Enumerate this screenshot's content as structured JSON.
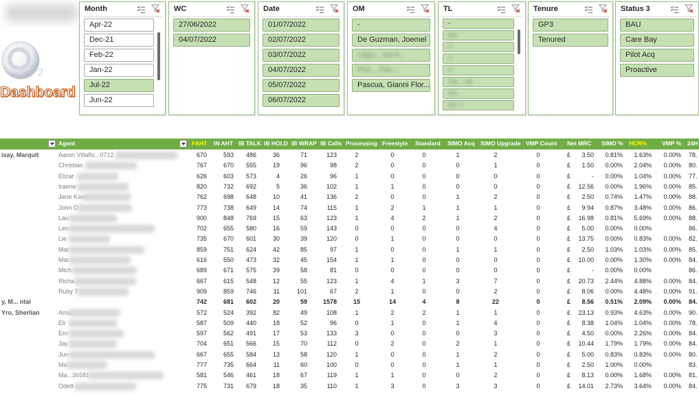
{
  "dashboard": {
    "title": "Dashboard",
    "logo_text": "2"
  },
  "slicers": [
    {
      "title": "Month",
      "items": [
        {
          "label": "Apr-22",
          "selected": false
        },
        {
          "label": "Dec-21",
          "selected": false
        },
        {
          "label": "Feb-22",
          "selected": false
        },
        {
          "label": "Jan-22",
          "selected": false
        },
        {
          "label": "Jul-22",
          "selected": true
        },
        {
          "label": "Jun-22",
          "selected": false
        }
      ]
    },
    {
      "title": "WC",
      "items": [
        {
          "label": "27/06/2022",
          "selected": true
        },
        {
          "label": "04/07/2022",
          "selected": true
        }
      ]
    },
    {
      "title": "Date",
      "items": [
        {
          "label": "01/07/2022",
          "selected": true
        },
        {
          "label": "02/07/2022",
          "selected": true
        },
        {
          "label": "03/07/2022",
          "selected": true
        },
        {
          "label": "04/07/2022",
          "selected": true
        },
        {
          "label": "05/07/2022",
          "selected": true
        },
        {
          "label": "06/07/2022",
          "selected": true
        }
      ]
    },
    {
      "title": "OM",
      "items": [
        {
          "label": "-",
          "selected": true
        },
        {
          "label": "De Guzman, Joemel",
          "selected": true
        },
        {
          "label": "Lagu... ael A...",
          "selected": true
        },
        {
          "label": "Pas... Flor...",
          "selected": true
        },
        {
          "label": "Pascua, Gianni Flor...",
          "selected": true
        }
      ]
    },
    {
      "title": "TL",
      "items": [
        {
          "label": "-",
          "selected": true
        },
        {
          "label": "Ba",
          "selected": true
        },
        {
          "label": "C",
          "selected": true
        },
        {
          "label": "C",
          "selected": true
        },
        {
          "label": "C",
          "selected": true
        },
        {
          "label": "Da... ult",
          "selected": true
        },
        {
          "label": "De",
          "selected": true
        },
        {
          "label": "De Y",
          "selected": true
        }
      ]
    },
    {
      "title": "Tenure",
      "items": [
        {
          "label": "GP3",
          "selected": true
        },
        {
          "label": "Tenured",
          "selected": true
        }
      ]
    },
    {
      "title": "Status 3",
      "items": [
        {
          "label": "BAU",
          "selected": true
        },
        {
          "label": "Care Bay",
          "selected": true
        },
        {
          "label": "Pilot Acq",
          "selected": true
        },
        {
          "label": "Proactive",
          "selected": true
        }
      ]
    }
  ],
  "table": {
    "columns": [
      "Agent",
      "FAHT",
      "IN AHT",
      "IB TALK",
      "IB HOLD",
      "IB WRAP",
      "IB Calls",
      "Processing",
      "Freestyle",
      "Standard",
      "SIMO Acq",
      "SIMO Upgrade",
      "VMP Count",
      "Net MRC",
      "SIMO %",
      "HCR%",
      "VMP %",
      "24H"
    ],
    "groups": [
      {
        "label": "isay, Marquit",
        "total_label": "",
        "rows": [
          {
            "agent": "Aaron Villaflo...0712",
            "v": [
              "670",
              "593",
              "486",
              "36",
              "71",
              "123",
              "2",
              "0",
              "0",
              "1",
              "2",
              "0",
              "£",
              "3.50",
              "0.81%",
              "1.63%",
              "0.00%",
              "78."
            ]
          },
          {
            "agent": "Christian",
            "v": [
              "767",
              "670",
              "555",
              "19",
              "96",
              "98",
              "2",
              "0",
              "0",
              "0",
              "1",
              "0",
              "£",
              "1.50",
              "0.00%",
              "2.04%",
              "0.00%",
              "80."
            ]
          },
          {
            "agent": "Elizar",
            "v": [
              "626",
              "603",
              "573",
              "4",
              "26",
              "96",
              "1",
              "0",
              "0",
              "0",
              "0",
              "0",
              "£",
              "-",
              "0.00%",
              "1.04%",
              "0.00%",
              "77."
            ]
          },
          {
            "agent": "Iraene",
            "v": [
              "820",
              "732",
              "692",
              "5",
              "36",
              "102",
              "1",
              "1",
              "0",
              "0",
              "0",
              "0",
              "£",
              "12.56",
              "0.00%",
              "1.96%",
              "0.00%",
              "85."
            ]
          },
          {
            "agent": "Jane Kaw",
            "v": [
              "762",
              "698",
              "648",
              "10",
              "41",
              "136",
              "2",
              "0",
              "0",
              "1",
              "2",
              "0",
              "£",
              "2.50",
              "0.74%",
              "1.47%",
              "0.00%",
              "88."
            ]
          },
          {
            "agent": "John D",
            "v": [
              "773",
              "738",
              "649",
              "14",
              "74",
              "115",
              "1",
              "2",
              "1",
              "1",
              "1",
              "0",
              "£",
              "9.94",
              "0.87%",
              "3.48%",
              "0.00%",
              "86."
            ]
          },
          {
            "agent": "Lau",
            "v": [
              "900",
              "848",
              "769",
              "15",
              "63",
              "123",
              "1",
              "4",
              "2",
              "1",
              "2",
              "0",
              "£",
              "16.98",
              "0.81%",
              "5.69%",
              "0.00%",
              "88."
            ]
          },
          {
            "agent": "Leo",
            "v": [
              "702",
              "655",
              "580",
              "16",
              "59",
              "143",
              "0",
              "0",
              "0",
              "0",
              "4",
              "0",
              "£",
              "5.00",
              "0.00%",
              "0.00%",
              "",
              "86."
            ]
          },
          {
            "agent": "Lie",
            "v": [
              "735",
              "670",
              "601",
              "30",
              "39",
              "120",
              "0",
              "1",
              "0",
              "0",
              "0",
              "0",
              "£",
              "13.75",
              "0.00%",
              "0.83%",
              "0.00%",
              "82."
            ]
          },
          {
            "agent": "Mar",
            "v": [
              "859",
              "751",
              "624",
              "42",
              "85",
              "97",
              "1",
              "0",
              "0",
              "1",
              "1",
              "0",
              "£",
              "2.50",
              "1.03%",
              "1.03%",
              "0.00%",
              "85."
            ]
          },
          {
            "agent": "Mar",
            "v": [
              "616",
              "550",
              "473",
              "32",
              "45",
              "154",
              "1",
              "1",
              "0",
              "0",
              "0",
              "0",
              "£",
              "10.00",
              "0.00%",
              "1.30%",
              "0.00%",
              "84."
            ]
          },
          {
            "agent": "Mich",
            "v": [
              "689",
              "671",
              "575",
              "39",
              "58",
              "81",
              "0",
              "0",
              "0",
              "0",
              "0",
              "0",
              "£",
              "-",
              "0.00%",
              "0.00%",
              "",
              "86."
            ]
          },
          {
            "agent": "Richa",
            "v": [
              "667",
              "615",
              "548",
              "12",
              "55",
              "123",
              "1",
              "4",
              "1",
              "3",
              "7",
              "0",
              "£",
              "20.73",
              "2.44%",
              "4.88%",
              "0.00%",
              "84."
            ]
          },
          {
            "agent": "Ruby T",
            "v": [
              "909",
              "859",
              "746",
              "11",
              "101",
              "67",
              "2",
              "1",
              "0",
              "0",
              "2",
              "0",
              "£",
              "8.06",
              "0.00%",
              "4.48%",
              "0.00%",
              "91."
            ]
          },
          {
            "agent": "",
            "total": true,
            "v": [
              "742",
              "681",
              "602",
              "20",
              "59",
              "1578",
              "15",
              "14",
              "4",
              "8",
              "22",
              "0",
              "£",
              "8.56",
              "0.51%",
              "2.09%",
              "0.00%",
              "84."
            ]
          }
        ]
      },
      {
        "label": "Yro, Sherlian",
        "rows": [
          {
            "agent": "Amo",
            "v": [
              "572",
              "524",
              "392",
              "82",
              "49",
              "108",
              "1",
              "2",
              "2",
              "1",
              "1",
              "0",
              "£",
              "23.13",
              "0.93%",
              "4.63%",
              "0.00%",
              "90."
            ]
          },
          {
            "agent": "Eli",
            "v": [
              "587",
              "509",
              "440",
              "18",
              "52",
              "96",
              "0",
              "1",
              "0",
              "1",
              "4",
              "0",
              "£",
              "8.38",
              "1.04%",
              "1.04%",
              "0.00%",
              "78."
            ]
          },
          {
            "agent": "Ern",
            "v": [
              "597",
              "562",
              "491",
              "17",
              "53",
              "133",
              "3",
              "0",
              "0",
              "0",
              "3",
              "0",
              "£",
              "4.50",
              "0.00%",
              "2.26%",
              "0.00%",
              "84."
            ]
          },
          {
            "agent": "Jay",
            "v": [
              "704",
              "651",
              "566",
              "15",
              "70",
              "112",
              "0",
              "2",
              "0",
              "2",
              "1",
              "0",
              "£",
              "10.44",
              "1.79%",
              "1.79%",
              "0.00%",
              "84."
            ]
          },
          {
            "agent": "Jun",
            "v": [
              "667",
              "655",
              "584",
              "13",
              "58",
              "120",
              "1",
              "0",
              "0",
              "1",
              "2",
              "0",
              "£",
              "5.00",
              "0.83%",
              "0.83%",
              "0.00%",
              "80."
            ]
          },
          {
            "agent": "Ma",
            "v": [
              "777",
              "735",
              "664",
              "11",
              "60",
              "100",
              "0",
              "0",
              "0",
              "1",
              "1",
              "0",
              "£",
              "2.50",
              "1.00%",
              "0.00%",
              "",
              "83."
            ]
          },
          {
            "agent": "Ma...36581",
            "v": [
              "581",
              "546",
              "461",
              "18",
              "67",
              "119",
              "1",
              "1",
              "0",
              "0",
              "2",
              "0",
              "£",
              "8.13",
              "0.00%",
              "1.68%",
              "0.00%",
              "81."
            ]
          },
          {
            "agent": "Odett",
            "v": [
              "775",
              "731",
              "679",
              "18",
              "35",
              "110",
              "1",
              "3",
              "0",
              "3",
              "3",
              "0",
              "£",
              "14.01",
              "2.73%",
              "3.64%",
              "0.00%",
              "84."
            ]
          }
        ]
      }
    ]
  },
  "group_label_2a": "y, M... ntal",
  "colors": {
    "header_bg": "#70ad47",
    "selected_item": "#c6e0b4",
    "title_orange": "#c55a11"
  }
}
